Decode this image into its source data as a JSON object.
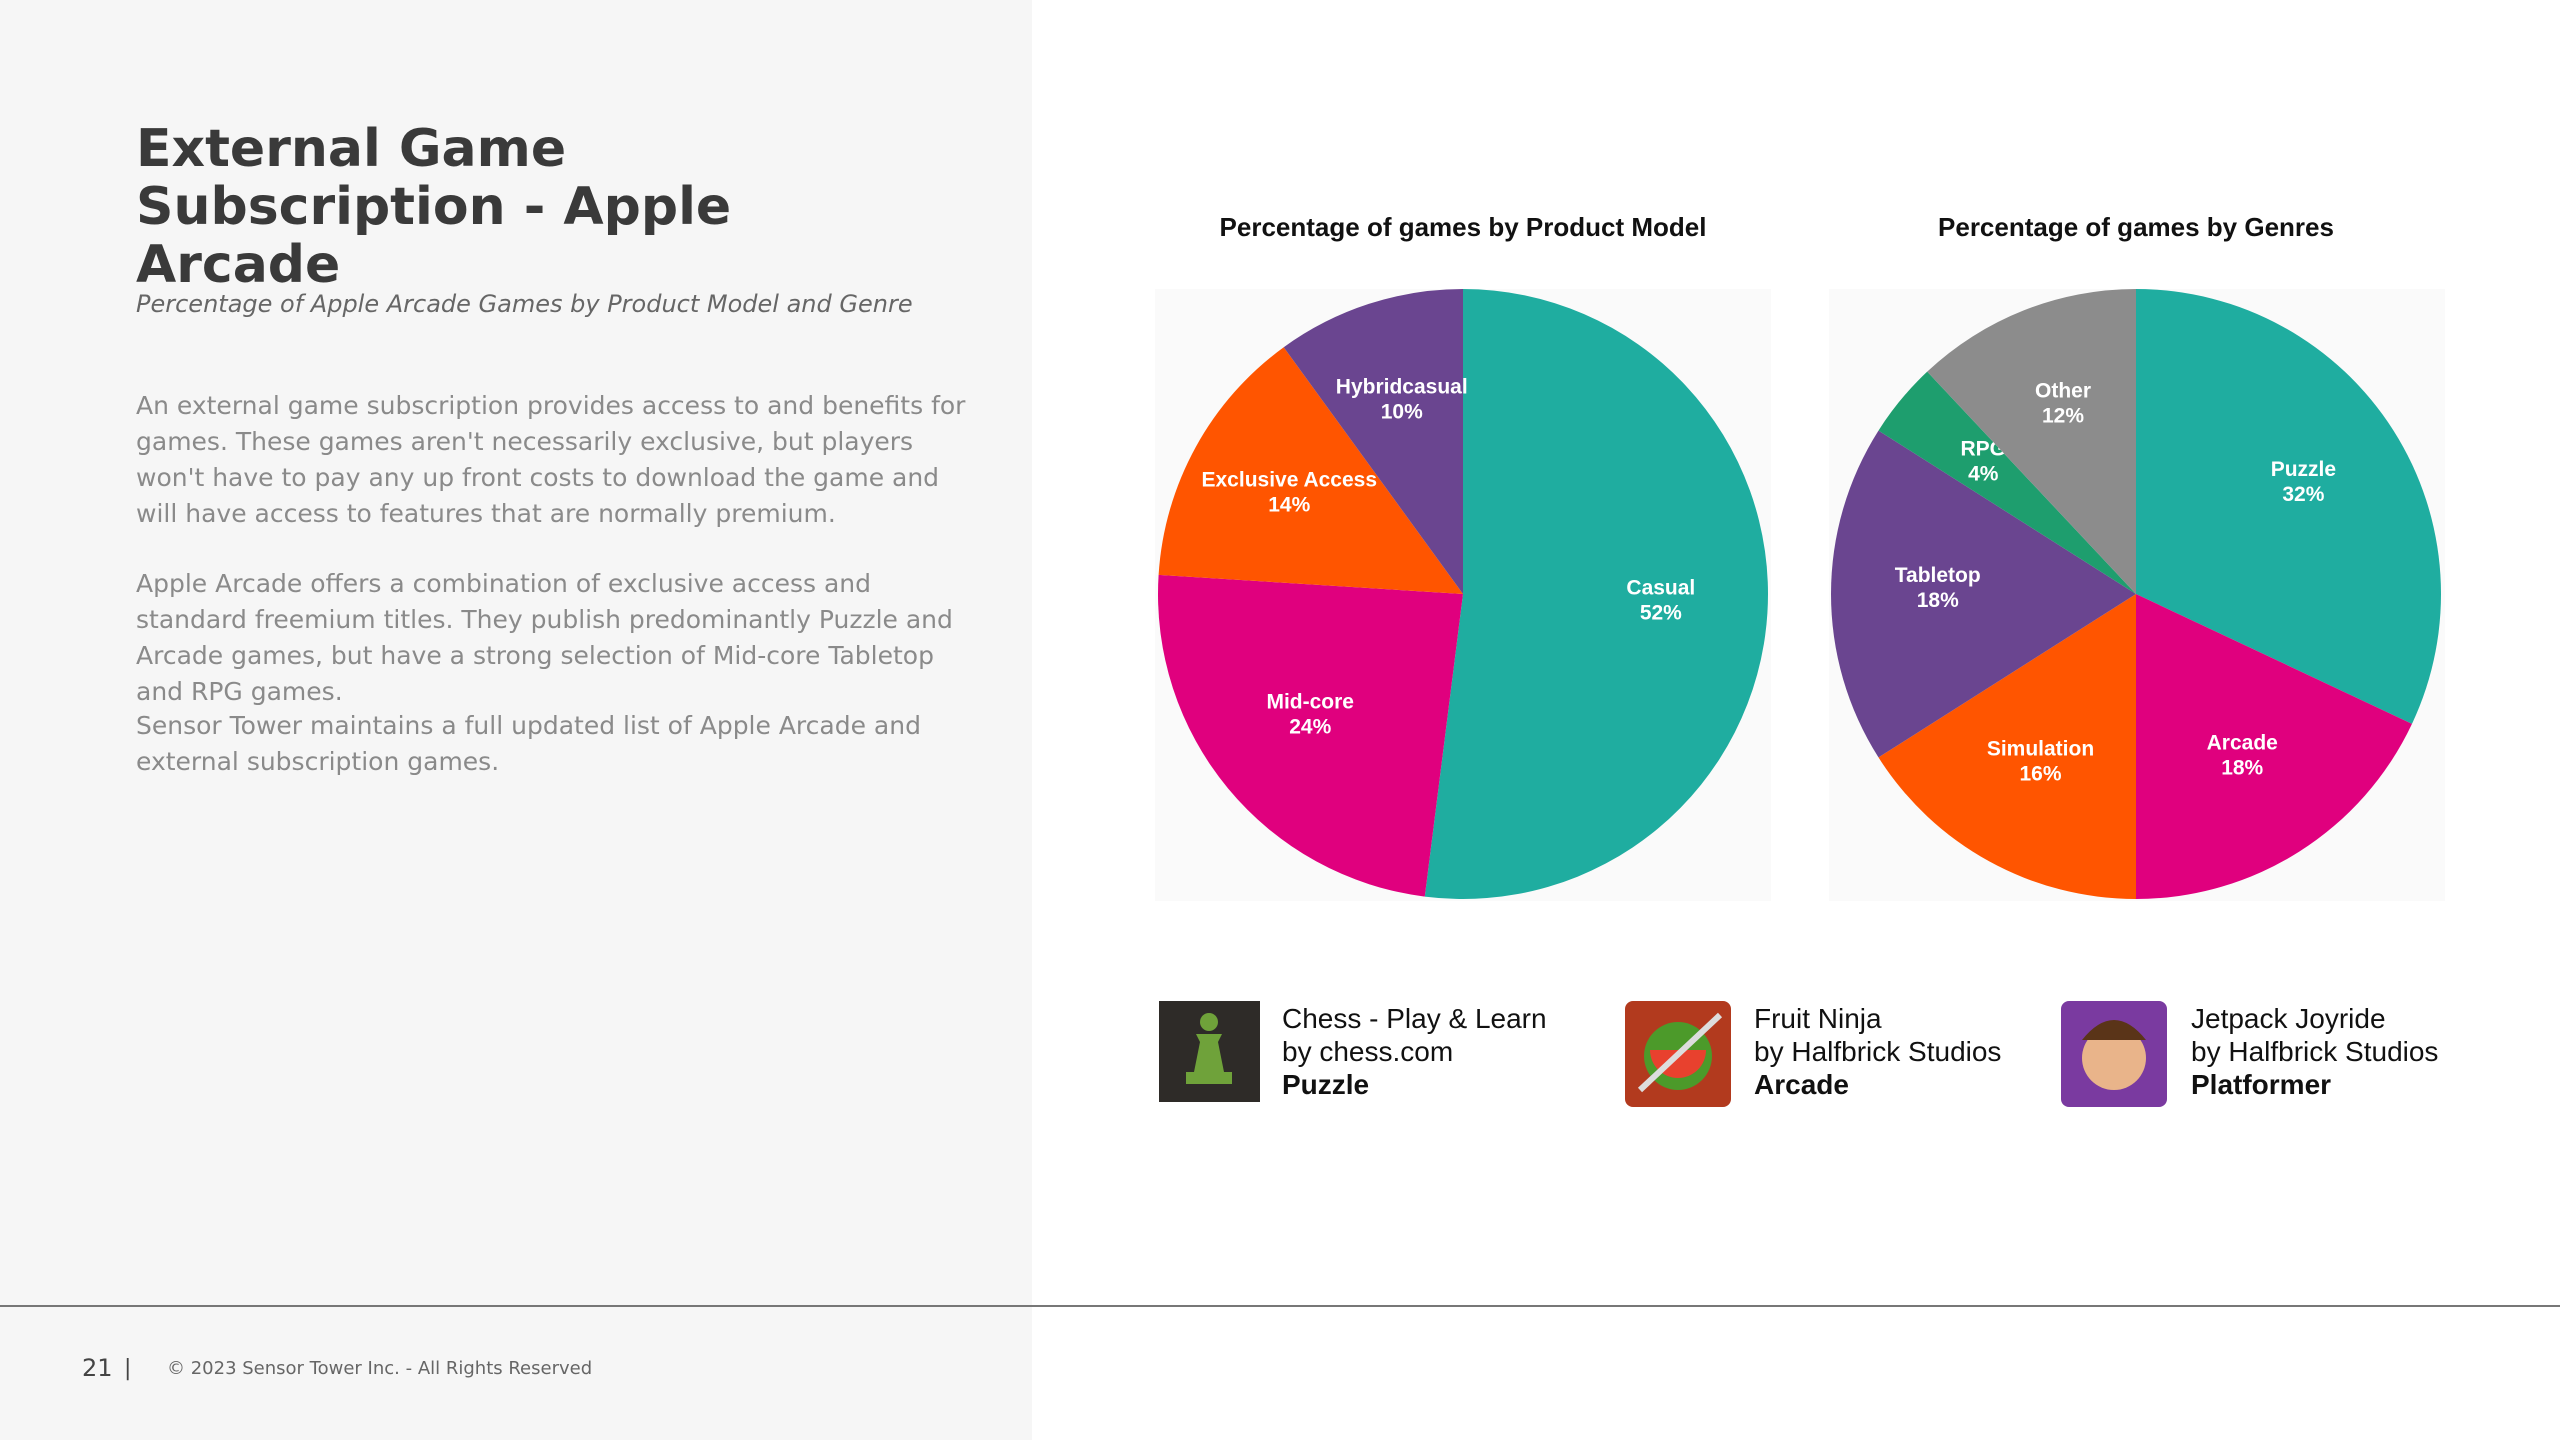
{
  "header": {
    "title": "External Game Subscription - Apple Arcade",
    "subtitle": "Percentage of Apple Arcade Games by Product Model and Genre"
  },
  "paragraphs": [
    "An external game subscription provides access to and benefits for games. These games aren't necessarily exclusive, but players won't have to pay any up front costs to download the game and will have access to features that are normally premium.",
    "Apple Arcade offers a combination of exclusive access and standard freemium titles. They publish predominantly Puzzle and Arcade games, but have a strong selection of Mid-core Tabletop and RPG games.",
    "Sensor Tower maintains a full updated list of Apple Arcade and external subscription games."
  ],
  "chart_data": [
    {
      "type": "pie",
      "title": "Percentage of games by Product Model",
      "categories": [
        "Casual",
        "Mid-core",
        "Exclusive Access",
        "Hybridcasual"
      ],
      "values": [
        52,
        24,
        14,
        10
      ],
      "value_labels": [
        "52%",
        "24%",
        "14%",
        "10%"
      ],
      "colors": [
        "#1fada0",
        "#e0007e",
        "#ff5500",
        "#6a4590"
      ]
    },
    {
      "type": "pie",
      "title": "Percentage of games by Genres",
      "categories": [
        "Puzzle",
        "Arcade",
        "Simulation",
        "Tabletop",
        "RPG",
        "Other"
      ],
      "values": [
        32,
        18,
        16,
        18,
        4,
        12
      ],
      "value_labels": [
        "32%",
        "18%",
        "16%",
        "18%",
        "4%",
        "12%"
      ],
      "colors": [
        "#1fada0",
        "#e0007e",
        "#ff5500",
        "#6a4590",
        "#1e9e6e",
        "#8c8c8c"
      ]
    }
  ],
  "games": [
    {
      "name": "Chess - Play & Learn",
      "developer": "by chess.com",
      "genre": "Puzzle"
    },
    {
      "name": "Fruit Ninja",
      "developer": "by Halfbrick Studios",
      "genre": "Arcade"
    },
    {
      "name": "Jetpack Joyride",
      "developer": "by Halfbrick Studios",
      "genre": "Platformer"
    }
  ],
  "footer": {
    "page": "21",
    "copyright": "© 2023 Sensor Tower Inc. - All Rights Reserved"
  }
}
